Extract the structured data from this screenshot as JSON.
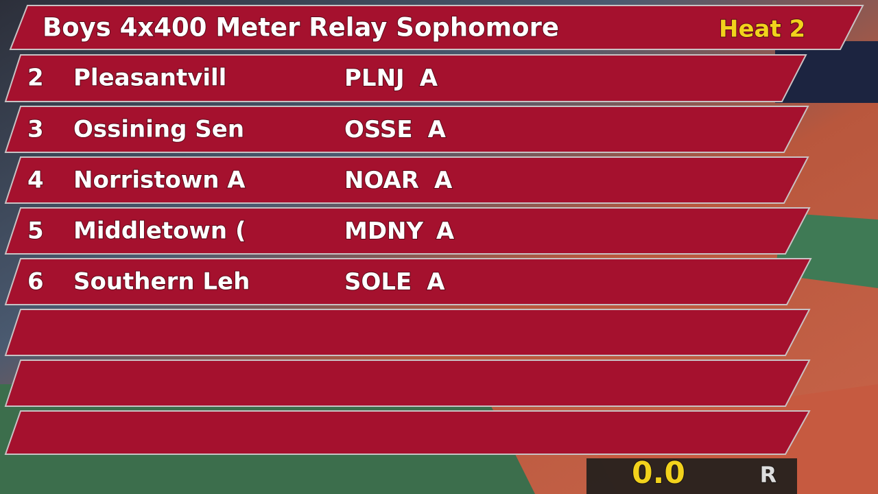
{
  "header": {
    "title": "Boys 4x400 Meter Relay Sophomore",
    "heat": "Heat 2"
  },
  "rows": [
    {
      "lane": 2,
      "team": "Pleasantvill",
      "code": "PLNJ",
      "section": "A"
    },
    {
      "lane": 3,
      "team": "Ossining Sen",
      "code": "OSSE",
      "section": "A"
    },
    {
      "lane": 4,
      "team": "Norristown A",
      "code": "NOAR",
      "section": "A"
    },
    {
      "lane": 5,
      "team": "Middletown (",
      "code": "MDNY",
      "section": "A"
    },
    {
      "lane": 6,
      "team": "Southern Leh",
      "code": "SOLE",
      "section": "A"
    }
  ],
  "timer": "0.0"
}
